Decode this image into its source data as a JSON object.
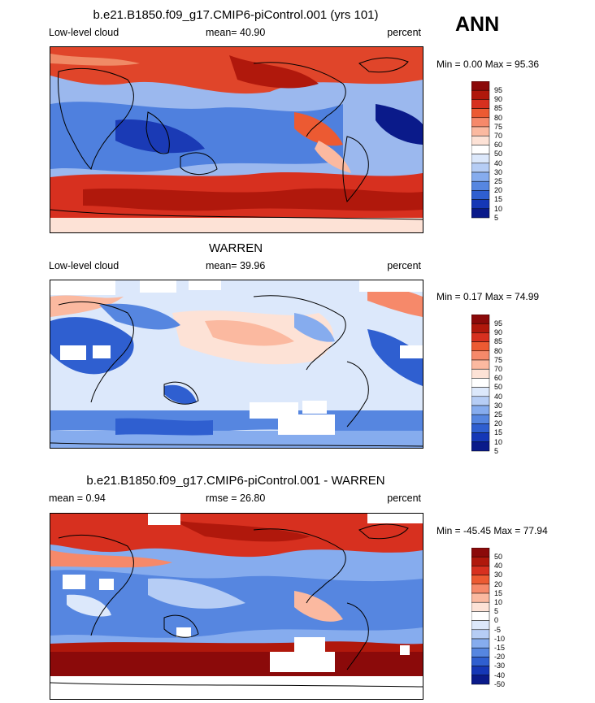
{
  "season": "ANN",
  "colorbar_levels_abs": [
    "95",
    "90",
    "85",
    "80",
    "75",
    "70",
    "60",
    "50",
    "40",
    "30",
    "25",
    "20",
    "15",
    "10",
    "5"
  ],
  "colorbar_levels_diff": [
    "50",
    "40",
    "30",
    "20",
    "15",
    "10",
    "5",
    "0",
    "-5",
    "-10",
    "-15",
    "-20",
    "-30",
    "-40",
    "-50"
  ],
  "colorbar_colors": [
    "#8b0a0a",
    "#b0180c",
    "#d7301f",
    "#ec5a32",
    "#f6896a",
    "#fbb9a0",
    "#fde2d6",
    "#ffffff",
    "#dce8fb",
    "#b6cdf5",
    "#86acee",
    "#5686e0",
    "#2f5fd0",
    "#1537b6",
    "#0a1a8a"
  ],
  "panels": [
    {
      "id": "model",
      "title": "b.e21.B1850.f09_g17.CMIP6-piControl.001 (yrs 101)",
      "left_label": "Low-level cloud",
      "center_label": "mean=  40.90",
      "units": "percent",
      "minmax": "Min =   0.00 Max =  95.36"
    },
    {
      "id": "obs",
      "title": "WARREN",
      "left_label": "Low-level cloud",
      "center_label": "mean=  39.96",
      "units": "percent",
      "minmax": "Min =   0.17 Max =  74.99"
    },
    {
      "id": "diff",
      "title": "b.e21.B1850.f09_g17.CMIP6-piControl.001 - WARREN",
      "left_label": "mean =   0.94",
      "center_label": "rmse =  26.80",
      "units": "percent",
      "minmax": "Min = -45.45 Max =  77.94"
    }
  ]
}
